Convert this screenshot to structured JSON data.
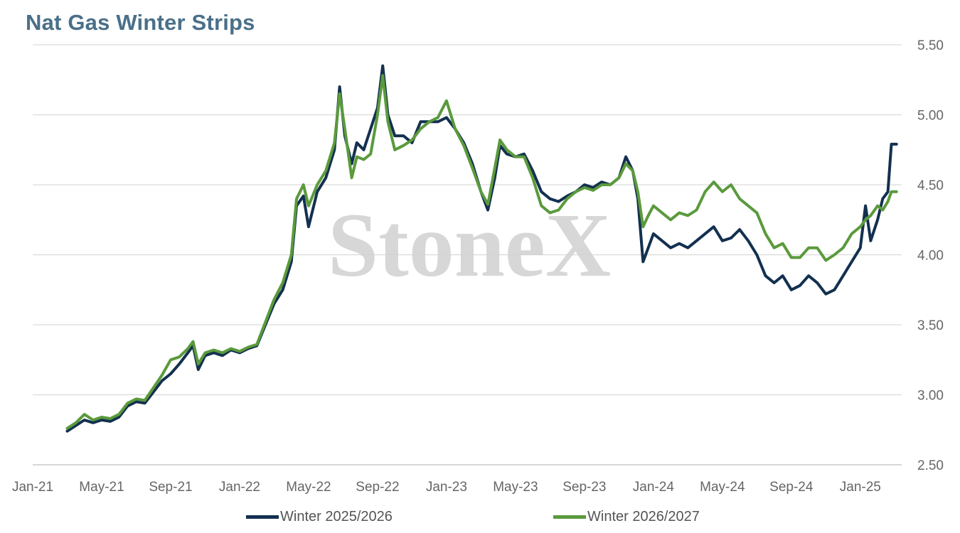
{
  "chart_data": {
    "type": "line",
    "title": "Nat Gas Winter Strips",
    "watermark": "StoneX",
    "xlabel": "",
    "ylabel": "",
    "ylim": [
      2.5,
      5.5
    ],
    "yticks": [
      "2.50",
      "3.00",
      "3.50",
      "4.00",
      "4.50",
      "5.00",
      "5.50"
    ],
    "yaxis_position": "right",
    "xticks": [
      "Jan-21",
      "May-21",
      "Sep-21",
      "Jan-22",
      "May-22",
      "Sep-22",
      "Jan-23",
      "May-23",
      "Sep-23",
      "Jan-24",
      "May-24",
      "Sep-24",
      "Jan-25"
    ],
    "grid": "horizontal",
    "legend_position": "bottom",
    "x_unit": "months since Jan-21",
    "series": [
      {
        "name": "Winter 2025/2026",
        "color": "#13304f",
        "points": [
          [
            2.0,
            2.74
          ],
          [
            2.5,
            2.78
          ],
          [
            3.0,
            2.82
          ],
          [
            3.5,
            2.8
          ],
          [
            4.0,
            2.82
          ],
          [
            4.5,
            2.81
          ],
          [
            5.0,
            2.84
          ],
          [
            5.5,
            2.92
          ],
          [
            6.0,
            2.95
          ],
          [
            6.5,
            2.94
          ],
          [
            7.0,
            3.02
          ],
          [
            7.5,
            3.1
          ],
          [
            8.0,
            3.15
          ],
          [
            8.5,
            3.22
          ],
          [
            9.0,
            3.3
          ],
          [
            9.3,
            3.35
          ],
          [
            9.6,
            3.18
          ],
          [
            10.0,
            3.28
          ],
          [
            10.5,
            3.3
          ],
          [
            11.0,
            3.28
          ],
          [
            11.5,
            3.32
          ],
          [
            12.0,
            3.3
          ],
          [
            12.5,
            3.33
          ],
          [
            13.0,
            3.35
          ],
          [
            13.5,
            3.5
          ],
          [
            14.0,
            3.65
          ],
          [
            14.5,
            3.75
          ],
          [
            15.0,
            3.95
          ],
          [
            15.3,
            4.35
          ],
          [
            15.7,
            4.42
          ],
          [
            16.0,
            4.2
          ],
          [
            16.5,
            4.45
          ],
          [
            17.0,
            4.55
          ],
          [
            17.5,
            4.75
          ],
          [
            17.8,
            5.2
          ],
          [
            18.1,
            4.85
          ],
          [
            18.5,
            4.65
          ],
          [
            18.8,
            4.8
          ],
          [
            19.2,
            4.75
          ],
          [
            19.6,
            4.9
          ],
          [
            20.0,
            5.05
          ],
          [
            20.3,
            5.35
          ],
          [
            20.6,
            5.0
          ],
          [
            21.0,
            4.85
          ],
          [
            21.5,
            4.85
          ],
          [
            22.0,
            4.8
          ],
          [
            22.5,
            4.95
          ],
          [
            23.0,
            4.95
          ],
          [
            23.5,
            4.95
          ],
          [
            24.0,
            4.98
          ],
          [
            24.5,
            4.9
          ],
          [
            25.0,
            4.8
          ],
          [
            25.5,
            4.65
          ],
          [
            26.0,
            4.45
          ],
          [
            26.4,
            4.32
          ],
          [
            26.8,
            4.55
          ],
          [
            27.1,
            4.78
          ],
          [
            27.5,
            4.72
          ],
          [
            28.0,
            4.7
          ],
          [
            28.5,
            4.72
          ],
          [
            29.0,
            4.6
          ],
          [
            29.5,
            4.45
          ],
          [
            30.0,
            4.4
          ],
          [
            30.5,
            4.38
          ],
          [
            31.0,
            4.42
          ],
          [
            31.5,
            4.45
          ],
          [
            32.0,
            4.5
          ],
          [
            32.5,
            4.48
          ],
          [
            33.0,
            4.52
          ],
          [
            33.5,
            4.5
          ],
          [
            34.0,
            4.55
          ],
          [
            34.4,
            4.7
          ],
          [
            34.8,
            4.6
          ],
          [
            35.1,
            4.4
          ],
          [
            35.4,
            3.95
          ],
          [
            35.7,
            4.05
          ],
          [
            36.0,
            4.15
          ],
          [
            36.5,
            4.1
          ],
          [
            37.0,
            4.05
          ],
          [
            37.5,
            4.08
          ],
          [
            38.0,
            4.05
          ],
          [
            38.5,
            4.1
          ],
          [
            39.0,
            4.15
          ],
          [
            39.5,
            4.2
          ],
          [
            40.0,
            4.1
          ],
          [
            40.5,
            4.12
          ],
          [
            41.0,
            4.18
          ],
          [
            41.5,
            4.1
          ],
          [
            42.0,
            4.0
          ],
          [
            42.5,
            3.85
          ],
          [
            43.0,
            3.8
          ],
          [
            43.5,
            3.85
          ],
          [
            44.0,
            3.75
          ],
          [
            44.5,
            3.78
          ],
          [
            45.0,
            3.85
          ],
          [
            45.5,
            3.8
          ],
          [
            46.0,
            3.72
          ],
          [
            46.5,
            3.75
          ],
          [
            47.0,
            3.85
          ],
          [
            47.5,
            3.95
          ],
          [
            48.0,
            4.05
          ],
          [
            48.3,
            4.35
          ],
          [
            48.6,
            4.1
          ],
          [
            49.0,
            4.25
          ],
          [
            49.3,
            4.4
          ],
          [
            49.6,
            4.45
          ],
          [
            49.8,
            4.79
          ],
          [
            50.1,
            4.79
          ]
        ]
      },
      {
        "name": "Winter 2026/2027",
        "color": "#5a9a3c",
        "points": [
          [
            2.0,
            2.76
          ],
          [
            2.5,
            2.8
          ],
          [
            3.0,
            2.86
          ],
          [
            3.5,
            2.82
          ],
          [
            4.0,
            2.84
          ],
          [
            4.5,
            2.83
          ],
          [
            5.0,
            2.86
          ],
          [
            5.5,
            2.94
          ],
          [
            6.0,
            2.97
          ],
          [
            6.5,
            2.96
          ],
          [
            7.0,
            3.05
          ],
          [
            7.5,
            3.14
          ],
          [
            8.0,
            3.25
          ],
          [
            8.5,
            3.27
          ],
          [
            9.0,
            3.33
          ],
          [
            9.3,
            3.38
          ],
          [
            9.6,
            3.22
          ],
          [
            10.0,
            3.3
          ],
          [
            10.5,
            3.32
          ],
          [
            11.0,
            3.3
          ],
          [
            11.5,
            3.33
          ],
          [
            12.0,
            3.31
          ],
          [
            12.5,
            3.34
          ],
          [
            13.0,
            3.36
          ],
          [
            13.5,
            3.52
          ],
          [
            14.0,
            3.68
          ],
          [
            14.5,
            3.8
          ],
          [
            15.0,
            4.0
          ],
          [
            15.3,
            4.4
          ],
          [
            15.7,
            4.5
          ],
          [
            16.0,
            4.35
          ],
          [
            16.5,
            4.5
          ],
          [
            17.0,
            4.6
          ],
          [
            17.5,
            4.8
          ],
          [
            17.8,
            5.15
          ],
          [
            18.1,
            4.9
          ],
          [
            18.5,
            4.55
          ],
          [
            18.8,
            4.7
          ],
          [
            19.2,
            4.68
          ],
          [
            19.6,
            4.72
          ],
          [
            20.0,
            5.0
          ],
          [
            20.3,
            5.28
          ],
          [
            20.6,
            4.95
          ],
          [
            21.0,
            4.75
          ],
          [
            21.5,
            4.78
          ],
          [
            22.0,
            4.82
          ],
          [
            22.5,
            4.9
          ],
          [
            23.0,
            4.95
          ],
          [
            23.5,
            4.98
          ],
          [
            24.0,
            5.1
          ],
          [
            24.5,
            4.9
          ],
          [
            25.0,
            4.78
          ],
          [
            25.5,
            4.62
          ],
          [
            26.0,
            4.45
          ],
          [
            26.4,
            4.36
          ],
          [
            26.8,
            4.62
          ],
          [
            27.1,
            4.82
          ],
          [
            27.5,
            4.75
          ],
          [
            28.0,
            4.7
          ],
          [
            28.5,
            4.7
          ],
          [
            29.0,
            4.55
          ],
          [
            29.5,
            4.35
          ],
          [
            30.0,
            4.3
          ],
          [
            30.5,
            4.32
          ],
          [
            31.0,
            4.4
          ],
          [
            31.5,
            4.45
          ],
          [
            32.0,
            4.48
          ],
          [
            32.5,
            4.46
          ],
          [
            33.0,
            4.5
          ],
          [
            33.5,
            4.5
          ],
          [
            34.0,
            4.55
          ],
          [
            34.4,
            4.65
          ],
          [
            34.8,
            4.6
          ],
          [
            35.1,
            4.45
          ],
          [
            35.4,
            4.2
          ],
          [
            35.7,
            4.28
          ],
          [
            36.0,
            4.35
          ],
          [
            36.5,
            4.3
          ],
          [
            37.0,
            4.25
          ],
          [
            37.5,
            4.3
          ],
          [
            38.0,
            4.28
          ],
          [
            38.5,
            4.32
          ],
          [
            39.0,
            4.45
          ],
          [
            39.5,
            4.52
          ],
          [
            40.0,
            4.45
          ],
          [
            40.5,
            4.5
          ],
          [
            41.0,
            4.4
          ],
          [
            41.5,
            4.35
          ],
          [
            42.0,
            4.3
          ],
          [
            42.5,
            4.15
          ],
          [
            43.0,
            4.05
          ],
          [
            43.5,
            4.08
          ],
          [
            44.0,
            3.98
          ],
          [
            44.5,
            3.98
          ],
          [
            45.0,
            4.05
          ],
          [
            45.5,
            4.05
          ],
          [
            46.0,
            3.96
          ],
          [
            46.5,
            4.0
          ],
          [
            47.0,
            4.05
          ],
          [
            47.5,
            4.15
          ],
          [
            48.0,
            4.2
          ],
          [
            48.3,
            4.25
          ],
          [
            48.6,
            4.28
          ],
          [
            49.0,
            4.35
          ],
          [
            49.3,
            4.32
          ],
          [
            49.6,
            4.38
          ],
          [
            49.8,
            4.45
          ],
          [
            50.1,
            4.45
          ]
        ]
      }
    ]
  }
}
